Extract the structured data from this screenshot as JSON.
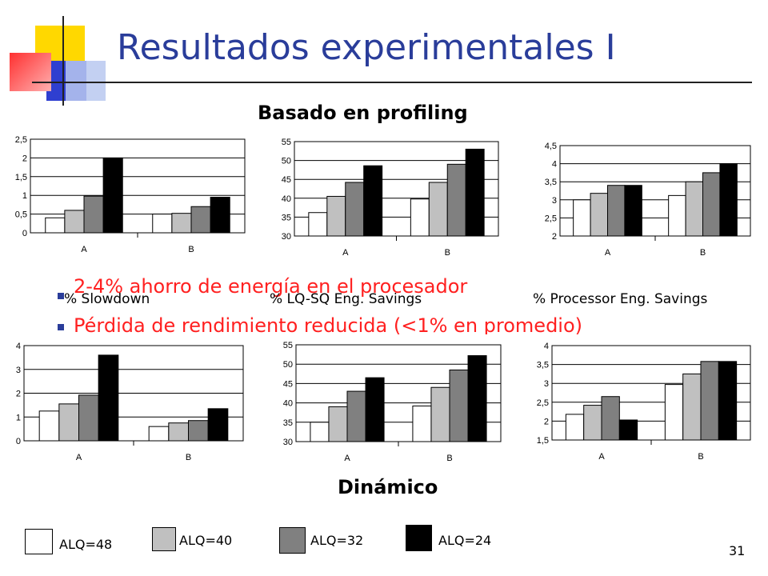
{
  "slide": {
    "title": "Resultados experimentales I",
    "profiling_heading": "Basado en profiling",
    "dynamic_heading": "Dinámico",
    "bullets": [
      "2-4% ahorro de energía en el procesador",
      "Pérdida de rendimiento reducida (<1% en promedio)"
    ],
    "captions": [
      "% Slowdown",
      "% LQ-SQ Eng. Savings",
      "% Processor Eng. Savings"
    ],
    "slide_number": "31",
    "colors": {
      "title": "#2a3d9a",
      "bullet_text": "#ff2020",
      "bullet_marker": "#2a3d9a"
    }
  },
  "legend": [
    {
      "label": "ALQ=48",
      "color": "#ffffff"
    },
    {
      "label": "ALQ=40",
      "color": "#c0c0c0"
    },
    {
      "label": "ALQ=32",
      "color": "#808080"
    },
    {
      "label": "ALQ=24",
      "color": "#000000"
    }
  ],
  "chart_data": [
    {
      "type": "bar",
      "group": "Basado en profiling",
      "caption": "% Slowdown",
      "categories": [
        "A",
        "B"
      ],
      "ylim": [
        0,
        2.5
      ],
      "yticks": [
        "0",
        "0,5",
        "1",
        "1,5",
        "2",
        "2,5"
      ],
      "grid": true,
      "series": [
        {
          "name": "ALQ=48",
          "values": [
            0.4,
            0.5
          ]
        },
        {
          "name": "ALQ=40",
          "values": [
            0.6,
            0.52
          ]
        },
        {
          "name": "ALQ=32",
          "values": [
            0.98,
            0.7
          ]
        },
        {
          "name": "ALQ=24",
          "values": [
            2.0,
            0.95
          ]
        }
      ]
    },
    {
      "type": "bar",
      "group": "Basado en profiling",
      "caption": "% LQ-SQ Eng. Savings",
      "categories": [
        "A",
        "B"
      ],
      "ylim": [
        30,
        55
      ],
      "yticks": [
        "30",
        "35",
        "40",
        "45",
        "50",
        "55"
      ],
      "grid": true,
      "series": [
        {
          "name": "ALQ=48",
          "values": [
            36.2,
            39.8
          ]
        },
        {
          "name": "ALQ=40",
          "values": [
            40.5,
            44.2
          ]
        },
        {
          "name": "ALQ=32",
          "values": [
            44.2,
            49.0
          ]
        },
        {
          "name": "ALQ=24",
          "values": [
            48.6,
            53.0
          ]
        }
      ]
    },
    {
      "type": "bar",
      "group": "Basado en profiling",
      "caption": "% Processor Eng. Savings",
      "categories": [
        "A",
        "B"
      ],
      "ylim": [
        2,
        4.5
      ],
      "yticks": [
        "2",
        "2,5",
        "3",
        "3,5",
        "4",
        "4,5"
      ],
      "grid": true,
      "series": [
        {
          "name": "ALQ=48",
          "values": [
            3.0,
            3.12
          ]
        },
        {
          "name": "ALQ=40",
          "values": [
            3.18,
            3.5
          ]
        },
        {
          "name": "ALQ=32",
          "values": [
            3.4,
            3.75
          ]
        },
        {
          "name": "ALQ=24",
          "values": [
            3.4,
            4.0
          ]
        }
      ]
    },
    {
      "type": "bar",
      "group": "Dinámico",
      "caption": "% Slowdown",
      "categories": [
        "A",
        "B"
      ],
      "ylim": [
        0,
        4
      ],
      "yticks": [
        "0",
        "1",
        "2",
        "3",
        "4"
      ],
      "grid": true,
      "series": [
        {
          "name": "ALQ=48",
          "values": [
            1.25,
            0.6
          ]
        },
        {
          "name": "ALQ=40",
          "values": [
            1.55,
            0.75
          ]
        },
        {
          "name": "ALQ=32",
          "values": [
            1.92,
            0.85
          ]
        },
        {
          "name": "ALQ=24",
          "values": [
            3.6,
            1.35
          ]
        }
      ]
    },
    {
      "type": "bar",
      "group": "Dinámico",
      "caption": "% LQ-SQ Eng. Savings",
      "categories": [
        "A",
        "B"
      ],
      "ylim": [
        30,
        55
      ],
      "yticks": [
        "30",
        "35",
        "40",
        "45",
        "50",
        "55"
      ],
      "grid": true,
      "series": [
        {
          "name": "ALQ=48",
          "values": [
            35.0,
            39.2
          ]
        },
        {
          "name": "ALQ=40",
          "values": [
            39.0,
            44.0
          ]
        },
        {
          "name": "ALQ=32",
          "values": [
            43.0,
            48.5
          ]
        },
        {
          "name": "ALQ=24",
          "values": [
            46.5,
            52.2
          ]
        }
      ]
    },
    {
      "type": "bar",
      "group": "Dinámico",
      "caption": "% Processor Eng. Savings",
      "categories": [
        "A",
        "B"
      ],
      "ylim": [
        1.5,
        4
      ],
      "yticks": [
        "1,5",
        "2",
        "2,5",
        "3",
        "3,5",
        "4"
      ],
      "grid": true,
      "series": [
        {
          "name": "ALQ=48",
          "values": [
            2.18,
            2.97
          ]
        },
        {
          "name": "ALQ=40",
          "values": [
            2.42,
            3.25
          ]
        },
        {
          "name": "ALQ=32",
          "values": [
            2.65,
            3.58
          ]
        },
        {
          "name": "ALQ=24",
          "values": [
            2.03,
            3.58
          ]
        }
      ]
    }
  ]
}
